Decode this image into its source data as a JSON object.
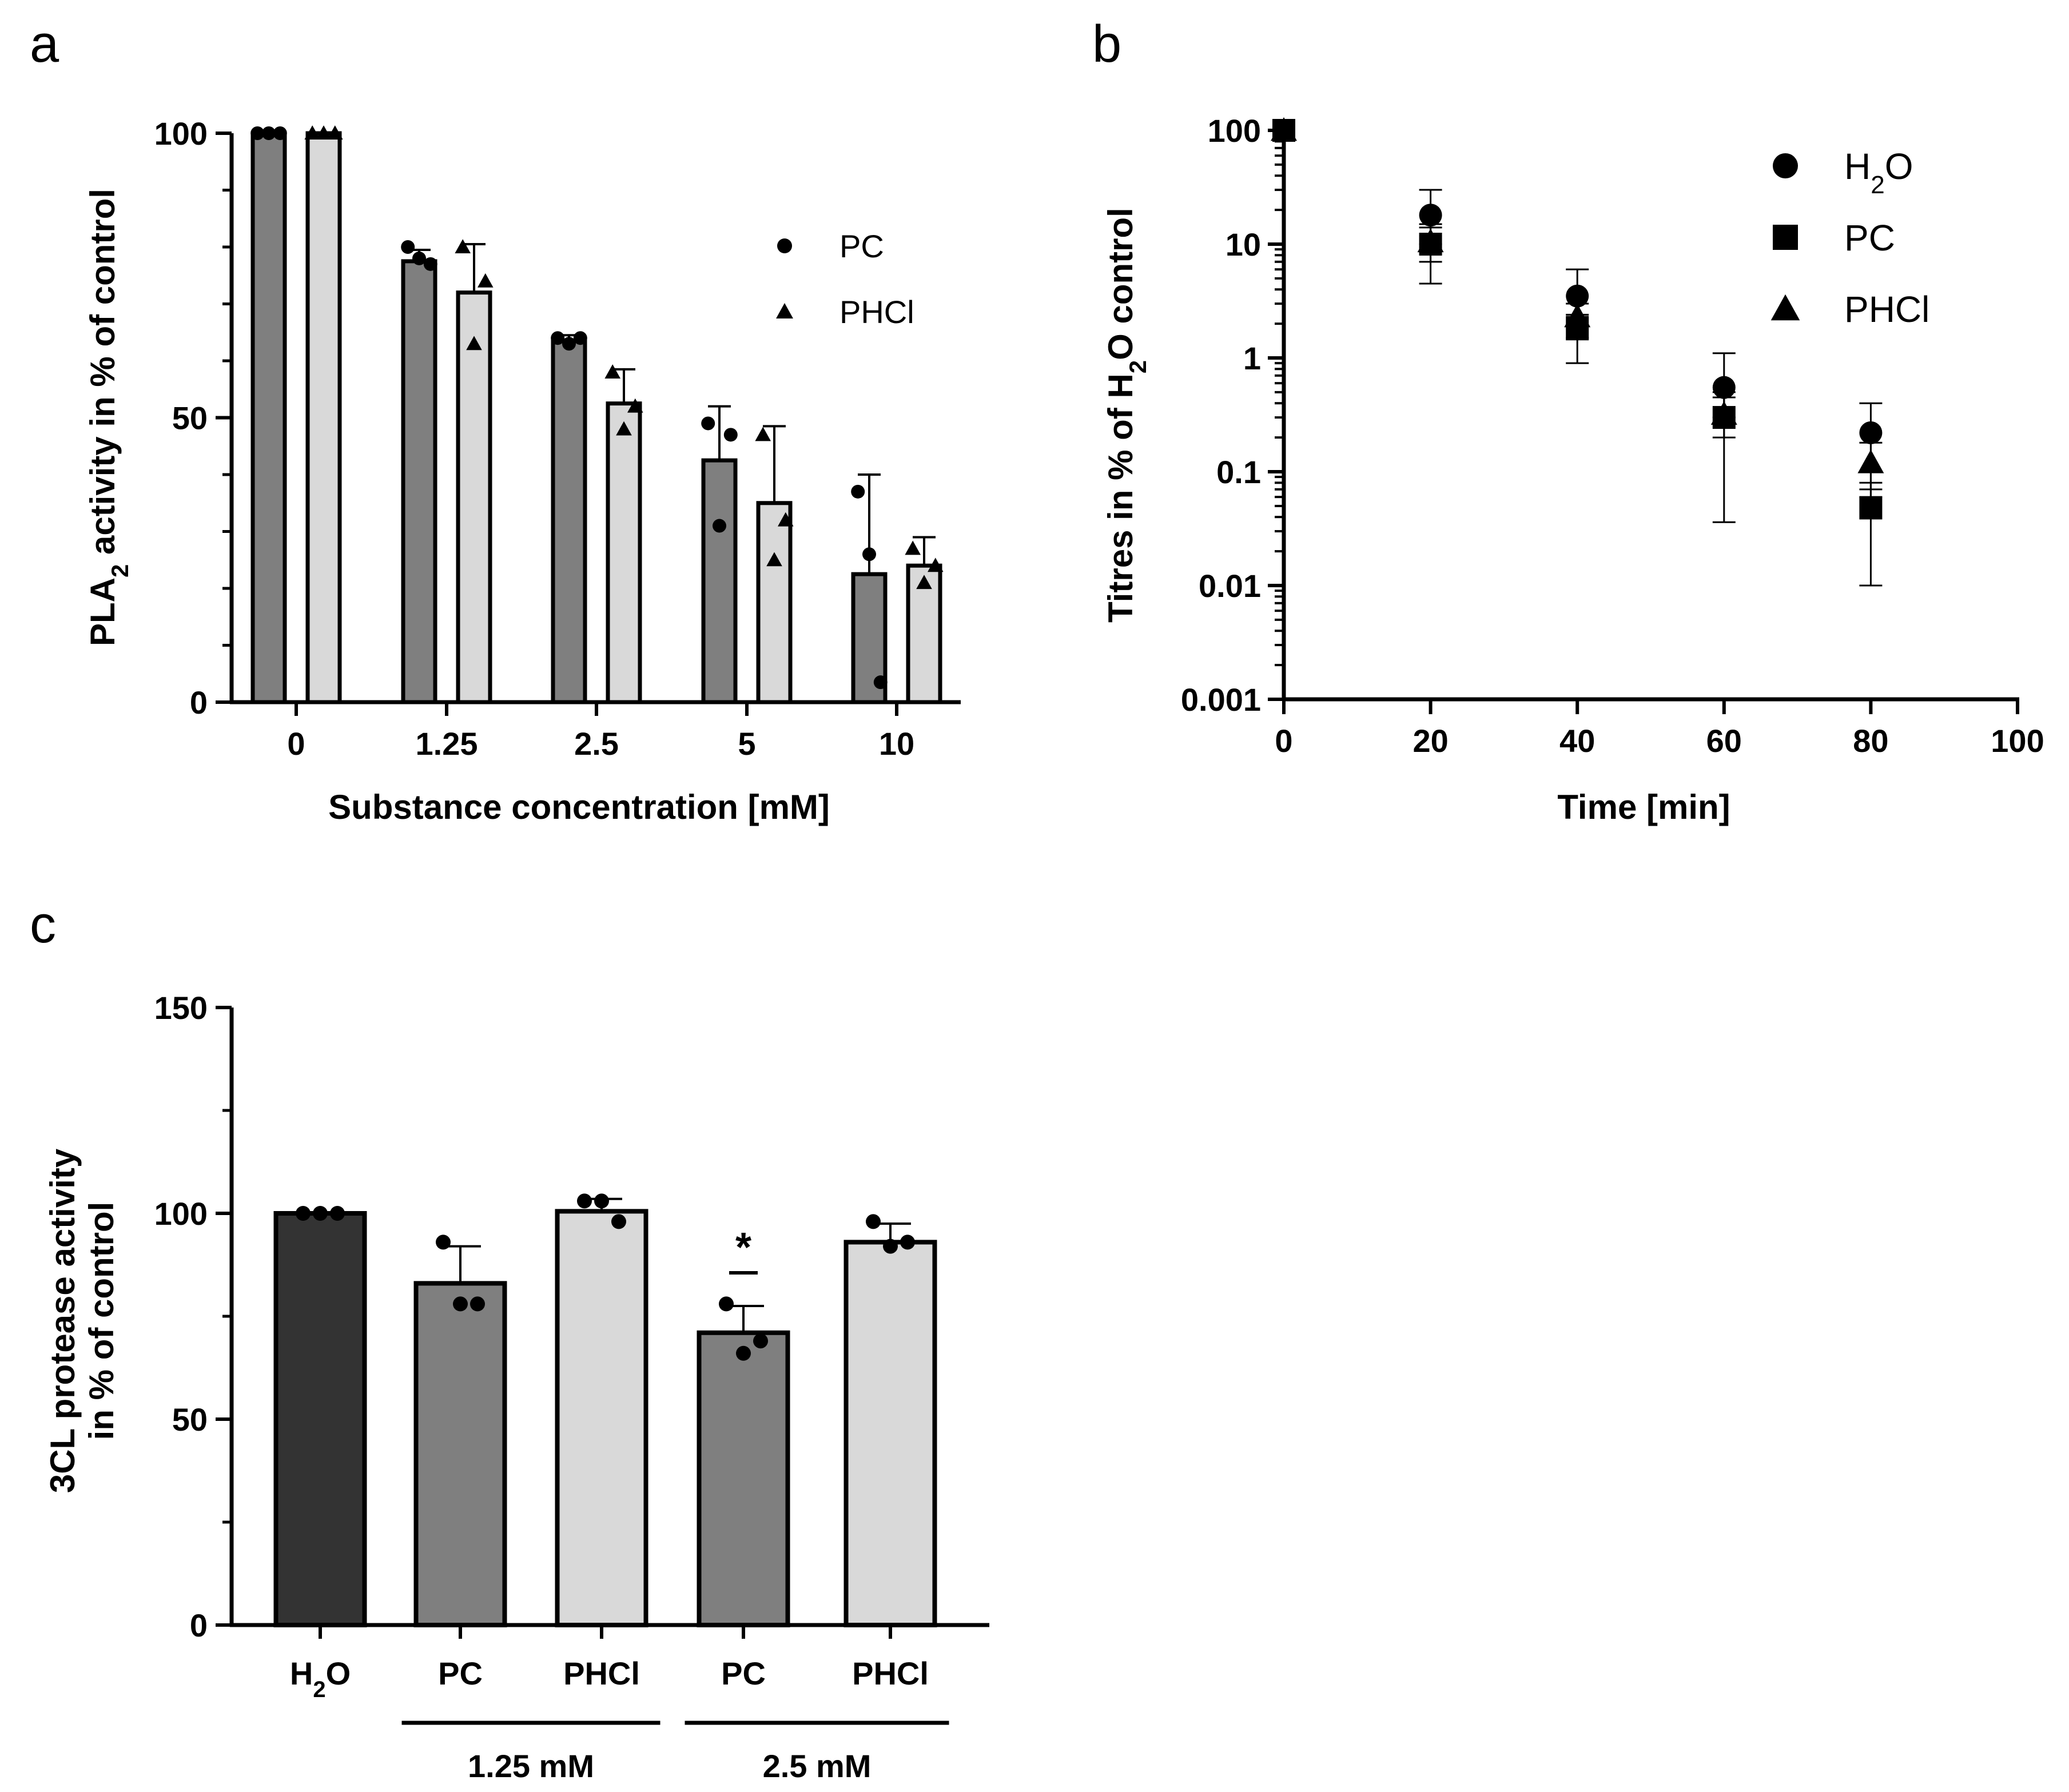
{
  "panels": {
    "a": {
      "letter": "a"
    },
    "b": {
      "letter": "b"
    },
    "c": {
      "letter": "c"
    }
  },
  "chart_data": [
    {
      "panel": "a",
      "type": "bar",
      "xlabel": "Substance concentration [mM]",
      "ylabel_parts": [
        "PLA",
        "2",
        " activity in % of control"
      ],
      "categories": [
        "0",
        "1.25",
        "2.5",
        "5",
        "10"
      ],
      "ylim": [
        0,
        100
      ],
      "yticks": [
        0,
        50,
        100
      ],
      "legend_position": "top-right",
      "series": [
        {
          "name": "PC",
          "marker": "circle",
          "color": "#7f7f7f",
          "values": [
            100,
            77.5,
            63.5,
            42.5,
            22.5
          ],
          "errors": [
            0,
            2,
            1,
            9.5,
            17.5
          ],
          "points": [
            [
              100,
              100,
              100
            ],
            [
              80,
              78,
              77
            ],
            [
              64,
              63,
              64
            ],
            [
              49,
              31,
              47
            ],
            [
              37,
              26,
              3.5
            ]
          ]
        },
        {
          "name": "PHCl",
          "marker": "triangle",
          "color": "#d9d9d9",
          "values": [
            100,
            72,
            52.5,
            35,
            24
          ],
          "errors": [
            0,
            8.5,
            6,
            13.5,
            5
          ],
          "points": [
            [
              100,
              100,
              100
            ],
            [
              80,
              63,
              74
            ],
            [
              58,
              48,
              52
            ],
            [
              47,
              25,
              32
            ],
            [
              27,
              21,
              24
            ]
          ]
        }
      ]
    },
    {
      "panel": "b",
      "type": "scatter",
      "xlabel": "Time [min]",
      "ylabel_parts": [
        "Titres in % of H",
        "2",
        "O control"
      ],
      "xlim": [
        0,
        100
      ],
      "xticks": [
        0,
        20,
        40,
        60,
        80,
        100
      ],
      "yscale": "log",
      "ylim": [
        0.001,
        100
      ],
      "yticks": [
        0.001,
        0.01,
        0.1,
        1,
        10,
        100
      ],
      "ytick_labels": [
        "0.001",
        "0.01",
        "0.1",
        "1",
        "10",
        "100"
      ],
      "legend_position": "top-right",
      "series": [
        {
          "name_parts": [
            "H",
            "2",
            "O"
          ],
          "marker": "circle",
          "x": [
            0,
            20,
            40,
            60,
            80
          ],
          "y": [
            100,
            18,
            3.5,
            0.55,
            0.22
          ],
          "err_low": [
            100,
            10,
            2.3,
            0.3,
            0.07
          ],
          "err_high": [
            100,
            30,
            6,
            1.1,
            0.4
          ]
        },
        {
          "name_parts": [
            "PC"
          ],
          "marker": "square",
          "x": [
            0,
            20,
            40,
            60,
            80
          ],
          "y": [
            100,
            10,
            1.8,
            0.3,
            0.048
          ],
          "err_low": [
            100,
            4.5,
            0.9,
            0.036,
            0.01
          ],
          "err_high": [
            100,
            15,
            2.4,
            0.5,
            0.08
          ]
        },
        {
          "name_parts": [
            "PHCl"
          ],
          "marker": "triangle",
          "x": [
            0,
            20,
            40,
            60,
            80
          ],
          "y": [
            100,
            10.5,
            2.3,
            0.32,
            0.12
          ],
          "err_low": [
            100,
            7,
            1.5,
            0.2,
            0.06
          ],
          "err_high": [
            100,
            14,
            3,
            0.45,
            0.18
          ]
        }
      ]
    },
    {
      "panel": "c",
      "type": "bar",
      "ylabel_lines": [
        "3CL protease activity",
        "in % of control"
      ],
      "categories": [
        [
          "H",
          "2",
          "O"
        ],
        [
          "PC"
        ],
        [
          "PHCl"
        ],
        [
          "PC"
        ],
        [
          "PHCl"
        ]
      ],
      "colors": [
        "#333333",
        "#7f7f7f",
        "#d9d9d9",
        "#7f7f7f",
        "#d9d9d9"
      ],
      "values": [
        100,
        83,
        100.5,
        71,
        93
      ],
      "errors": [
        0,
        9,
        3,
        6.5,
        4.5
      ],
      "points": [
        [
          100,
          100,
          100
        ],
        [
          93,
          78,
          78
        ],
        [
          103,
          103,
          98
        ],
        [
          78,
          66,
          69
        ],
        [
          98,
          92,
          93
        ]
      ],
      "ylim": [
        0,
        150
      ],
      "yticks": [
        0,
        50,
        100,
        150
      ],
      "significance": [
        {
          "category_index": 3,
          "label": "*"
        }
      ],
      "groups": [
        {
          "label": "1.25 mM",
          "from": 1,
          "to": 2
        },
        {
          "label": "2.5 mM",
          "from": 3,
          "to": 4
        }
      ]
    }
  ]
}
